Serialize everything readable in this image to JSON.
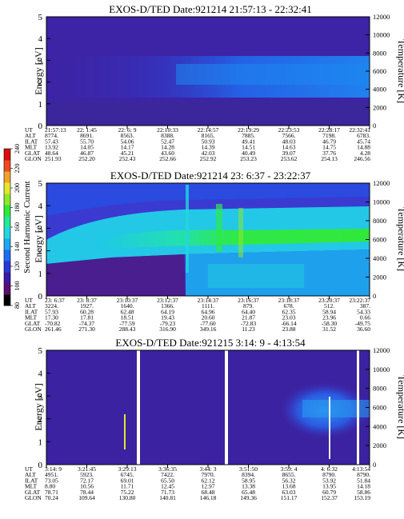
{
  "chart_data": {
    "type": "heatmap",
    "colorbar": {
      "label": "Second Harmonic Current",
      "ticks": [
        "80",
        "100",
        "120",
        "140",
        "160",
        "180",
        "200",
        "220",
        "240"
      ],
      "colors": [
        "#000000",
        "#5a0f6e",
        "#3a1aa8",
        "#2a39d8",
        "#1f6df0",
        "#1ea7f2",
        "#22d6e0",
        "#22e89a",
        "#2fe83a",
        "#8ee82a",
        "#e6e62a",
        "#f2a12a",
        "#ee4a1e",
        "#d81010"
      ]
    },
    "panels": [
      {
        "title": "EXOS-D/TED   Date:921214   21:57:13 - 22:32:41",
        "ylabel": "Energy [eV]",
        "y2label": "Temperature [K]",
        "ylim": [
          0,
          5
        ],
        "y2lim": [
          0,
          12000
        ],
        "yticks": [
          "0",
          "1",
          "2",
          "3",
          "4",
          "5"
        ],
        "y2ticks": [
          "0",
          "2000",
          "4000",
          "6000",
          "8000",
          "10000",
          "12000"
        ],
        "ephemeris_labels": [
          "UT",
          "ALT",
          "ILAT",
          "MLT",
          "GLAT",
          "GLON"
        ],
        "ephemeris": [
          [
            "21:57:13",
            "8774.",
            "57.43",
            "13.92",
            "48.64",
            "251.93"
          ],
          [
            "22: 1:45",
            "8691.",
            "55.70",
            "14.05",
            "46.87",
            "252.20"
          ],
          [
            "22: 6: 9",
            "8563.",
            "54.06",
            "14.17",
            "45.21",
            "252.43"
          ],
          [
            "22:10:33",
            "8388.",
            "52.47",
            "14.28",
            "43.60",
            "252.66"
          ],
          [
            "22:14:57",
            "8165.",
            "50.93",
            "14.39",
            "42.03",
            "252.92"
          ],
          [
            "22:19:29",
            "7885.",
            "49.41",
            "14.51",
            "40.49",
            "253.23"
          ],
          [
            "22:23:53",
            "7566.",
            "48.03",
            "14.63",
            "39.07",
            "253.62"
          ],
          [
            "22:28:17",
            "7198.",
            "46.79",
            "14.75",
            "37.76",
            "254.13"
          ],
          [
            "22:32:41",
            "6783.",
            "45.74",
            "14.88",
            "4.28",
            "246.56"
          ]
        ]
      },
      {
        "title": "EXOS-D/TED   Date:921214  23: 6:37 - 23:22:37",
        "ylabel": "Energy [eV]",
        "y2label": "Temperature [K]",
        "ylim": [
          0,
          5
        ],
        "y2lim": [
          0,
          12000
        ],
        "yticks": [
          "0",
          "1",
          "2",
          "3",
          "4",
          "5"
        ],
        "y2ticks": [
          "0",
          "2000",
          "4000",
          "6000",
          "8000",
          "10000",
          "12000"
        ],
        "ephemeris_labels": [
          "UT",
          "ALT",
          "ILAT",
          "MLT",
          "GLAT",
          "GLON"
        ],
        "ephemeris": [
          [
            "23: 6:37",
            "3224.",
            "57.93",
            "17.30",
            "-70.82",
            "261.46"
          ],
          [
            "23: 8:37",
            "1927.",
            "60.28",
            "17.81",
            "-74.37",
            "271.30"
          ],
          [
            "23:10:37",
            "1640.",
            "62.48",
            "18.51",
            "-77.59",
            "288.43"
          ],
          [
            "23:12:37",
            "1366.",
            "64.19",
            "19.43",
            "-79.23",
            "316.90"
          ],
          [
            "23:14:37",
            "1111.",
            "64.96",
            "20.60",
            "-77.60",
            "349.16"
          ],
          [
            "23:16:37",
            "879.",
            "64.40",
            "21.87",
            "-72.83",
            "11.23"
          ],
          [
            "23:18:37",
            "678.",
            "62.35",
            "23.03",
            "-66.14",
            "23.88"
          ],
          [
            "23:20:37",
            "512.",
            "58.94",
            "23.96",
            "-58.30",
            "31.52"
          ],
          [
            "23:22:37",
            "387.",
            "54.33",
            "0.66",
            "-49.75",
            "36.60"
          ]
        ]
      },
      {
        "title": "EXOS-D/TED   Date:921215   3:14: 9 - 4:13:54",
        "ylabel": "Energy [eV]",
        "y2label": "Temperature [K]",
        "ylim": [
          0,
          5
        ],
        "y2lim": [
          0,
          12000
        ],
        "yticks": [
          "0",
          "1",
          "2",
          "3",
          "4",
          "5"
        ],
        "y2ticks": [
          "0",
          "2000",
          "4000",
          "6000",
          "8000",
          "10000",
          "12000"
        ],
        "ephemeris_labels": [
          "UT",
          "ALT",
          "ILAT",
          "MLT",
          "GLAT",
          "GLON"
        ],
        "ephemeris": [
          [
            "3:14: 9",
            "4951.",
            "73.05",
            "8.80",
            "78.71",
            "70.24"
          ],
          [
            "3:21:45",
            "5923.",
            "72.17",
            "10.56",
            "78.44",
            "109.64"
          ],
          [
            "3:29:13",
            "6745.",
            "69.01",
            "11.71",
            "75.22",
            "130.80"
          ],
          [
            "3:36:35",
            "7422.",
            "65.50",
            "12.45",
            "71.73",
            "140.81"
          ],
          [
            "3:44: 3",
            "7970.",
            "62.12",
            "12.97",
            "68.48",
            "146.18"
          ],
          [
            "3:51:50",
            "8394.",
            "58.95",
            "13.38",
            "65.48",
            "149.36"
          ],
          [
            "3:59: 4",
            "8655.",
            "56.32",
            "13.68",
            "63.03",
            "151.17"
          ],
          [
            "4: 6:32",
            "8790.",
            "53.92",
            "13.95",
            "60.79",
            "152.37"
          ],
          [
            "4:13:54",
            "8790.",
            "51.84",
            "14.18",
            "58.86",
            "153.19"
          ]
        ]
      }
    ]
  }
}
